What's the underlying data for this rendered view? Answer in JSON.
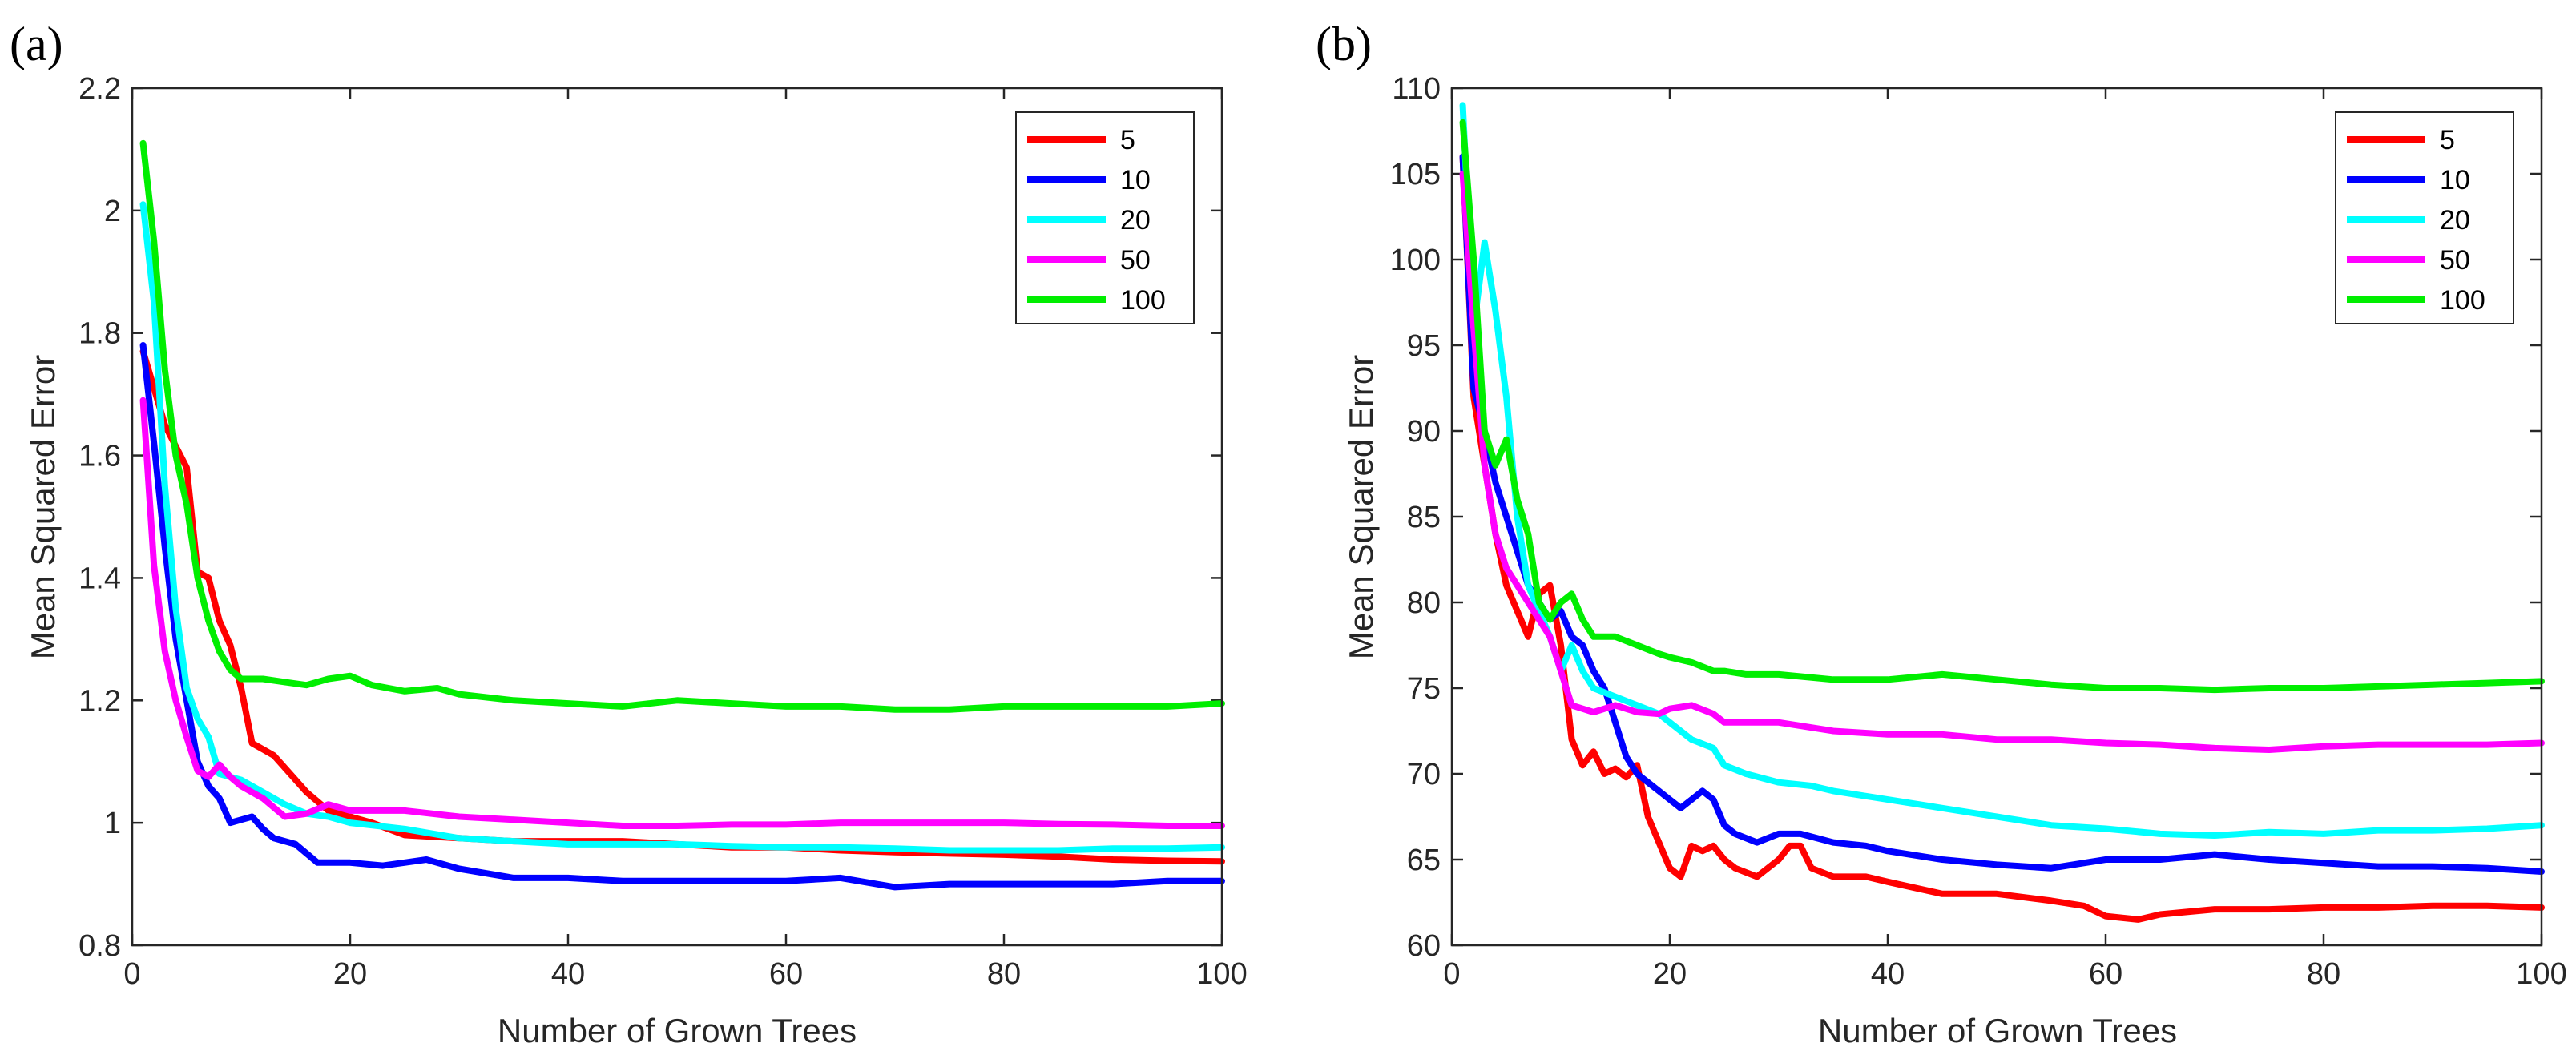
{
  "chart_data": [
    {
      "type": "line",
      "panel_label": "(a)",
      "xlabel": "Number of Grown Trees",
      "ylabel": "Mean Squared Error",
      "xlim": [
        0,
        100
      ],
      "ylim": [
        0.8,
        2.2
      ],
      "xticks": [
        0,
        20,
        40,
        60,
        80,
        100
      ],
      "yticks": [
        0.8,
        1,
        1.2,
        1.4,
        1.6,
        1.8,
        2,
        2.2
      ],
      "xtick_labels": [
        "0",
        "20",
        "40",
        "60",
        "80",
        "100"
      ],
      "ytick_labels": [
        "0.8",
        "1",
        "1.2",
        "1.4",
        "1.6",
        "1.8",
        "2",
        "2.2"
      ],
      "legend_position": "top-right",
      "series": [
        {
          "name": "5",
          "color": "#ff0000",
          "x": [
            1,
            3,
            5,
            6,
            7,
            8,
            9,
            10,
            11,
            12,
            13,
            14,
            16,
            18,
            20,
            22,
            25,
            30,
            35,
            40,
            45,
            50,
            55,
            60,
            65,
            70,
            75,
            80,
            85,
            90,
            95,
            100
          ],
          "values": [
            1.77,
            1.65,
            1.58,
            1.41,
            1.4,
            1.33,
            1.29,
            1.22,
            1.13,
            1.12,
            1.11,
            1.09,
            1.05,
            1.02,
            1.01,
            1.0,
            0.98,
            0.975,
            0.97,
            0.97,
            0.97,
            0.965,
            0.96,
            0.96,
            0.955,
            0.952,
            0.95,
            0.948,
            0.945,
            0.94,
            0.938,
            0.937
          ]
        },
        {
          "name": "10",
          "color": "#0000ff",
          "x": [
            1,
            2,
            3,
            4,
            5,
            6,
            7,
            8,
            9,
            10,
            11,
            12,
            13,
            15,
            17,
            20,
            23,
            27,
            30,
            35,
            40,
            45,
            50,
            55,
            60,
            65,
            70,
            75,
            80,
            85,
            90,
            95,
            100
          ],
          "values": [
            1.78,
            1.62,
            1.45,
            1.3,
            1.2,
            1.1,
            1.06,
            1.04,
            1.0,
            1.005,
            1.01,
            0.99,
            0.975,
            0.965,
            0.935,
            0.935,
            0.93,
            0.94,
            0.925,
            0.91,
            0.91,
            0.905,
            0.905,
            0.905,
            0.905,
            0.91,
            0.895,
            0.9,
            0.9,
            0.9,
            0.9,
            0.905,
            0.905
          ]
        },
        {
          "name": "20",
          "color": "#00ffff",
          "x": [
            1,
            2,
            3,
            4,
            5,
            6,
            7,
            8,
            9,
            10,
            12,
            14,
            16,
            18,
            20,
            25,
            30,
            35,
            40,
            45,
            50,
            55,
            60,
            65,
            70,
            75,
            80,
            85,
            90,
            95,
            100
          ],
          "values": [
            2.01,
            1.85,
            1.55,
            1.35,
            1.22,
            1.17,
            1.14,
            1.08,
            1.075,
            1.07,
            1.05,
            1.03,
            1.015,
            1.01,
            1.0,
            0.99,
            0.975,
            0.97,
            0.965,
            0.965,
            0.965,
            0.962,
            0.96,
            0.96,
            0.958,
            0.955,
            0.955,
            0.955,
            0.958,
            0.958,
            0.96
          ]
        },
        {
          "name": "50",
          "color": "#ff00ff",
          "x": [
            1,
            2,
            3,
            4,
            5,
            6,
            7,
            8,
            9,
            10,
            12,
            14,
            16,
            18,
            20,
            25,
            30,
            35,
            40,
            45,
            50,
            55,
            60,
            65,
            70,
            75,
            80,
            85,
            90,
            95,
            100
          ],
          "values": [
            1.69,
            1.42,
            1.28,
            1.2,
            1.14,
            1.085,
            1.075,
            1.095,
            1.075,
            1.06,
            1.04,
            1.01,
            1.015,
            1.03,
            1.02,
            1.02,
            1.01,
            1.005,
            1.0,
            0.995,
            0.995,
            0.997,
            0.997,
            1.0,
            1.0,
            1.0,
            1.0,
            0.998,
            0.997,
            0.995,
            0.995
          ]
        },
        {
          "name": "100",
          "color": "#00ee00",
          "x": [
            1,
            2,
            3,
            4,
            5,
            6,
            7,
            8,
            9,
            10,
            12,
            14,
            16,
            18,
            20,
            22,
            25,
            28,
            30,
            35,
            40,
            45,
            50,
            55,
            60,
            65,
            70,
            75,
            80,
            85,
            90,
            95,
            100
          ],
          "values": [
            2.11,
            1.95,
            1.74,
            1.6,
            1.52,
            1.4,
            1.33,
            1.28,
            1.25,
            1.235,
            1.235,
            1.23,
            1.225,
            1.235,
            1.24,
            1.225,
            1.215,
            1.22,
            1.21,
            1.2,
            1.195,
            1.19,
            1.2,
            1.195,
            1.19,
            1.19,
            1.185,
            1.185,
            1.19,
            1.19,
            1.19,
            1.19,
            1.195
          ]
        }
      ]
    },
    {
      "type": "line",
      "panel_label": "(b)",
      "xlabel": "Number of Grown Trees",
      "ylabel": "Mean Squared Error",
      "xlim": [
        0,
        100
      ],
      "ylim": [
        60,
        110
      ],
      "xticks": [
        0,
        20,
        40,
        60,
        80,
        100
      ],
      "yticks": [
        60,
        65,
        70,
        75,
        80,
        85,
        90,
        95,
        100,
        105,
        110
      ],
      "xtick_labels": [
        "0",
        "20",
        "40",
        "60",
        "80",
        "100"
      ],
      "ytick_labels": [
        "60",
        "65",
        "70",
        "75",
        "80",
        "85",
        "90",
        "95",
        "100",
        "105",
        "110"
      ],
      "legend_position": "top-right",
      "series": [
        {
          "name": "5",
          "color": "#ff0000",
          "x": [
            1,
            2,
            3,
            4,
            5,
            6,
            7,
            8,
            9,
            10,
            11,
            12,
            13,
            14,
            15,
            16,
            17,
            18,
            19,
            20,
            21,
            22,
            23,
            24,
            25,
            26,
            28,
            30,
            31,
            32,
            33,
            35,
            38,
            40,
            45,
            48,
            50,
            55,
            58,
            60,
            63,
            65,
            70,
            75,
            80,
            85,
            90,
            95,
            100
          ],
          "values": [
            106,
            92,
            88,
            84,
            81,
            79.5,
            78,
            80.5,
            81,
            77.5,
            72,
            70.5,
            71.3,
            70,
            70.3,
            69.8,
            70.5,
            67.5,
            66,
            64.5,
            64,
            65.8,
            65.5,
            65.8,
            65,
            64.5,
            64,
            65,
            65.8,
            65.8,
            64.5,
            64,
            64,
            63.7,
            63,
            63,
            63,
            62.6,
            62.3,
            61.7,
            61.5,
            61.8,
            62.1,
            62.1,
            62.2,
            62.2,
            62.3,
            62.3,
            62.2
          ]
        },
        {
          "name": "10",
          "color": "#0000ff",
          "x": [
            1,
            2,
            3,
            4,
            5,
            6,
            7,
            8,
            9,
            10,
            11,
            12,
            13,
            14,
            15,
            16,
            17,
            18,
            19,
            20,
            21,
            22,
            23,
            24,
            25,
            26,
            28,
            30,
            32,
            35,
            38,
            40,
            45,
            50,
            55,
            60,
            65,
            70,
            75,
            80,
            85,
            90,
            95,
            100
          ],
          "values": [
            106,
            92.5,
            90,
            87,
            85,
            83,
            81,
            80,
            79,
            79.5,
            78,
            77.5,
            76,
            75,
            73,
            71,
            70,
            69.5,
            69,
            68.5,
            68,
            68.5,
            69,
            68.5,
            67,
            66.5,
            66,
            66.5,
            66.5,
            66,
            65.8,
            65.5,
            65,
            64.7,
            64.5,
            65,
            65,
            65.3,
            65,
            64.8,
            64.6,
            64.6,
            64.5,
            64.3
          ]
        },
        {
          "name": "20",
          "color": "#00ffff",
          "x": [
            1,
            2,
            3,
            4,
            5,
            6,
            7,
            8,
            9,
            10,
            11,
            12,
            13,
            15,
            17,
            19,
            20,
            22,
            24,
            25,
            27,
            30,
            33,
            35,
            38,
            40,
            45,
            50,
            55,
            60,
            65,
            70,
            75,
            80,
            85,
            90,
            95,
            100
          ],
          "values": [
            109,
            96,
            101,
            97,
            92,
            85,
            81,
            79.5,
            78,
            76,
            77.5,
            76,
            75,
            74.5,
            74,
            73.5,
            73,
            72,
            71.5,
            70.5,
            70,
            69.5,
            69.3,
            69,
            68.7,
            68.5,
            68,
            67.5,
            67,
            66.8,
            66.5,
            66.4,
            66.6,
            66.5,
            66.7,
            66.7,
            66.8,
            67
          ]
        },
        {
          "name": "50",
          "color": "#ff00ff",
          "x": [
            1,
            2,
            3,
            4,
            5,
            6,
            7,
            8,
            9,
            10,
            11,
            12,
            13,
            15,
            17,
            19,
            20,
            22,
            24,
            25,
            27,
            30,
            35,
            40,
            45,
            50,
            55,
            60,
            65,
            70,
            75,
            80,
            85,
            90,
            95,
            100
          ],
          "values": [
            105,
            96,
            88,
            84,
            82,
            81,
            80,
            79,
            78,
            76,
            74,
            73.8,
            73.6,
            74,
            73.6,
            73.5,
            73.8,
            74,
            73.5,
            73,
            73,
            73,
            72.5,
            72.3,
            72.3,
            72,
            72,
            71.8,
            71.7,
            71.5,
            71.4,
            71.6,
            71.7,
            71.7,
            71.7,
            71.8
          ]
        },
        {
          "name": "100",
          "color": "#00ee00",
          "x": [
            1,
            2,
            3,
            4,
            5,
            6,
            7,
            8,
            9,
            10,
            11,
            12,
            13,
            15,
            17,
            19,
            20,
            22,
            24,
            25,
            27,
            30,
            35,
            40,
            45,
            50,
            55,
            60,
            65,
            70,
            75,
            80,
            85,
            90,
            95,
            100
          ],
          "values": [
            108,
            100,
            90,
            88,
            89.5,
            86,
            84,
            80,
            79,
            80,
            80.5,
            79,
            78,
            78,
            77.5,
            77,
            76.8,
            76.5,
            76,
            76,
            75.8,
            75.8,
            75.5,
            75.5,
            75.8,
            75.5,
            75.2,
            75,
            75,
            74.9,
            75,
            75,
            75.1,
            75.2,
            75.3,
            75.4
          ]
        }
      ]
    }
  ]
}
